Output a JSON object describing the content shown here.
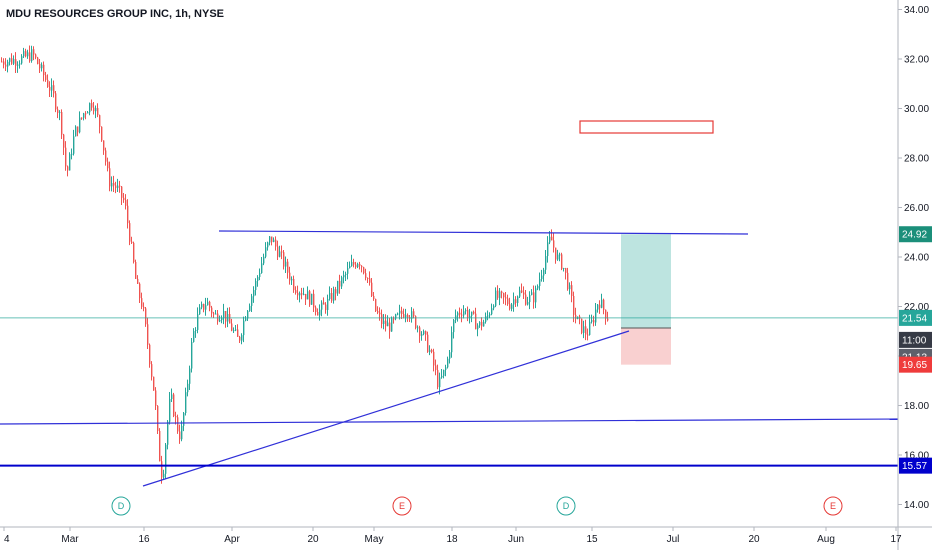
{
  "header": {
    "title": "MDU RESOURCES GROUP INC, 1h, NYSE"
  },
  "chart_data": {
    "type": "candlestick",
    "y_axis": {
      "range": [
        13.2,
        34.3
      ],
      "ticks": [
        "14.00",
        "16.00",
        "18.00",
        "20.00",
        "22.00",
        "24.00",
        "26.00",
        "28.00",
        "30.00",
        "32.00",
        "34.00"
      ]
    },
    "x_axis": {
      "ticks": [
        "4",
        "Mar",
        "16",
        "Apr",
        "20",
        "May",
        "18",
        "Jun",
        "15",
        "Jul",
        "20",
        "Aug",
        "17"
      ]
    },
    "price_path": [
      [
        0,
        31.9
      ],
      [
        20,
        32.0
      ],
      [
        32,
        32.2
      ],
      [
        40,
        31.6
      ],
      [
        52,
        30.6
      ],
      [
        60,
        29.6
      ],
      [
        66,
        27.3
      ],
      [
        74,
        29.0
      ],
      [
        84,
        29.9
      ],
      [
        92,
        30.3
      ],
      [
        100,
        29.2
      ],
      [
        108,
        27.1
      ],
      [
        116,
        26.8
      ],
      [
        124,
        26.2
      ],
      [
        130,
        24.6
      ],
      [
        136,
        22.8
      ],
      [
        142,
        22.0
      ],
      [
        148,
        20.2
      ],
      [
        154,
        18.4
      ],
      [
        158,
        16.2
      ],
      [
        162,
        15.0
      ],
      [
        166,
        17.0
      ],
      [
        170,
        18.4
      ],
      [
        176,
        17.2
      ],
      [
        180,
        16.7
      ],
      [
        186,
        18.6
      ],
      [
        192,
        20.8
      ],
      [
        198,
        21.7
      ],
      [
        206,
        22.2
      ],
      [
        214,
        21.6
      ],
      [
        222,
        21.8
      ],
      [
        230,
        21.2
      ],
      [
        238,
        20.6
      ],
      [
        246,
        21.9
      ],
      [
        254,
        22.8
      ],
      [
        262,
        23.9
      ],
      [
        270,
        24.8
      ],
      [
        278,
        24.2
      ],
      [
        286,
        23.5
      ],
      [
        294,
        22.8
      ],
      [
        302,
        22.6
      ],
      [
        310,
        22.3
      ],
      [
        318,
        21.8
      ],
      [
        326,
        22.1
      ],
      [
        334,
        22.6
      ],
      [
        342,
        23.1
      ],
      [
        350,
        23.6
      ],
      [
        358,
        23.9
      ],
      [
        366,
        23.3
      ],
      [
        374,
        21.9
      ],
      [
        382,
        21.3
      ],
      [
        390,
        21.2
      ],
      [
        398,
        21.6
      ],
      [
        406,
        21.9
      ],
      [
        414,
        21.4
      ],
      [
        422,
        20.9
      ],
      [
        430,
        20.1
      ],
      [
        438,
        18.8
      ],
      [
        446,
        19.6
      ],
      [
        454,
        21.6
      ],
      [
        462,
        21.9
      ],
      [
        470,
        21.6
      ],
      [
        478,
        21.2
      ],
      [
        486,
        21.5
      ],
      [
        494,
        22.4
      ],
      [
        502,
        22.3
      ],
      [
        510,
        22.1
      ],
      [
        518,
        22.6
      ],
      [
        526,
        22.3
      ],
      [
        534,
        22.4
      ],
      [
        542,
        23.6
      ],
      [
        550,
        24.8
      ],
      [
        556,
        24.0
      ],
      [
        562,
        23.7
      ],
      [
        568,
        22.8
      ],
      [
        574,
        21.6
      ],
      [
        580,
        21.2
      ],
      [
        586,
        20.9
      ],
      [
        592,
        21.4
      ],
      [
        598,
        22.3
      ],
      [
        604,
        21.8
      ],
      [
        608,
        21.5
      ]
    ],
    "last_price": 21.54,
    "badges": {
      "target": "24.92",
      "last": "21.54",
      "countdown": "11:00",
      "entry": "21.13",
      "stop": "19.65",
      "level": "15.57"
    },
    "events": [
      "D",
      "E",
      "D",
      "E"
    ],
    "colors": {
      "up": "#26a69a",
      "down": "#ef5350",
      "trendline": "#3030d8",
      "level_line": "#0000cc",
      "profit_zone": "#b2dfdb",
      "loss_zone": "#f8c8c8",
      "target_badge": "#1b8f7a",
      "last_badge": "#26a69a",
      "countdown_badge": "#363a45",
      "entry_badge": "#5d606b",
      "stop_badge": "#ef3b3b",
      "level_badge": "#0000cc",
      "dividend": "#26a69a",
      "earnings": "#e53935"
    }
  }
}
